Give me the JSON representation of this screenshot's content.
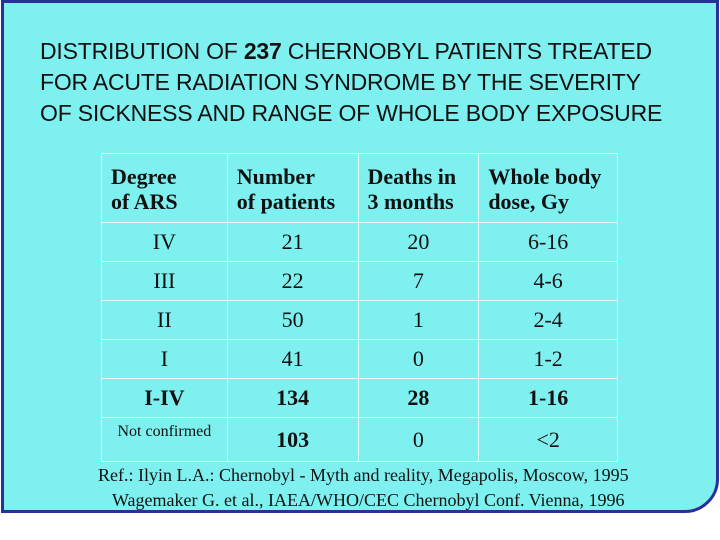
{
  "title": {
    "line1_prefix": "DISTRIBUTION OF ",
    "line1_bold": "237",
    "line1_suffix": " CHERNOBYL PATIENTS TREATED",
    "line2": "FOR ACUTE RADIATION SYNDROME BY THE SEVERITY",
    "line3": "OF SICKNESS AND RANGE OF WHOLE BODY EXPOSURE"
  },
  "table": {
    "headers": [
      {
        "line1": "Degree",
        "line2": "of ARS"
      },
      {
        "line1": "Number",
        "line2": "of patients"
      },
      {
        "line1": "Deaths in",
        "line2": "3 months"
      },
      {
        "line1": "Whole body",
        "line2": "dose,  Gy"
      }
    ],
    "rows": [
      [
        "IV",
        "21",
        "20",
        "6-16"
      ],
      [
        "III",
        "22",
        "7",
        "4-6"
      ],
      [
        "II",
        "50",
        "1",
        "2-4"
      ],
      [
        "I",
        "41",
        "0",
        "1-2"
      ],
      [
        "I-IV",
        "134",
        "28",
        "1-16"
      ],
      [
        "Not confirmed",
        "103",
        "0",
        "<2"
      ]
    ]
  },
  "references": [
    "Ref.: Ilyin L.A.: Chernobyl - Myth and reality, Megapolis, Moscow, 1995",
    "Wagemaker G. et al., IAEA/WHO/CEC Chernobyl Conf. Vienna, 1996"
  ]
}
